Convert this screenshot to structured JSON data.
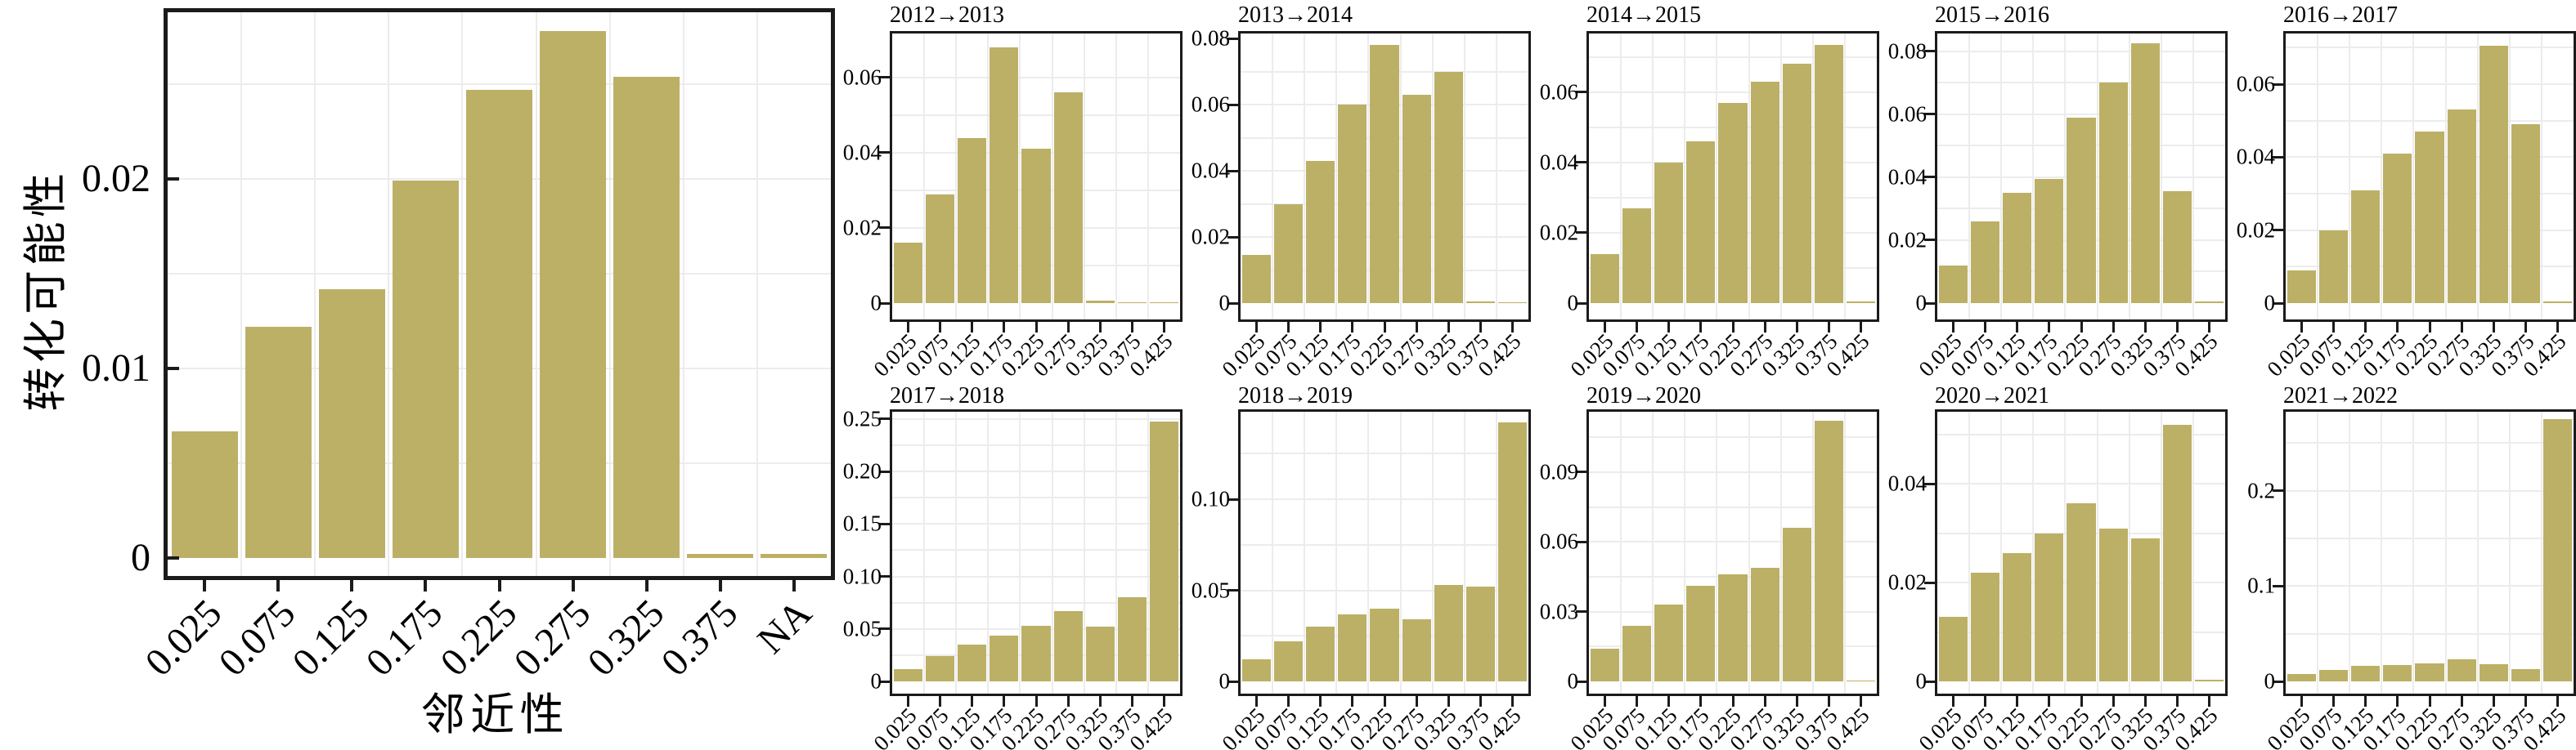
{
  "figure": {
    "background": "#ffffff",
    "bar_color": "#bcb066",
    "grid_color": "#ececee",
    "spine_color": "#1b1b1b",
    "text_color": "#000000"
  },
  "chart_data": [
    {
      "id": "main",
      "type": "bar",
      "title": "",
      "xlabel": "邻近性",
      "ylabel": "转化可能性",
      "categories": [
        "0.025",
        "0.075",
        "0.125",
        "0.175",
        "0.225",
        "0.275",
        "0.325",
        "0.375",
        "NA"
      ],
      "values": [
        0.0067,
        0.0122,
        0.0142,
        0.0199,
        0.0247,
        0.0278,
        0.0254,
        0.0002,
        0.0002
      ],
      "yticks": [
        0,
        0.01,
        0.02
      ],
      "ytick_labels": [
        "0",
        "0.01",
        "0.02"
      ],
      "ylim": [
        0,
        0.0288
      ],
      "grid": true,
      "legend_position": "none"
    },
    {
      "id": "t2012",
      "type": "bar",
      "title": "2012→2013",
      "categories": [
        "0.025",
        "0.075",
        "0.125",
        "0.175",
        "0.225",
        "0.275",
        "0.325",
        "0.375",
        "0.425"
      ],
      "values": [
        0.016,
        0.029,
        0.044,
        0.068,
        0.041,
        0.056,
        0.0006,
        0.0002,
        0.0002
      ],
      "yticks": [
        0,
        0.02,
        0.04,
        0.06
      ],
      "ytick_labels": [
        "0",
        "0.02",
        "0.04",
        "0.06"
      ],
      "ylim": [
        0,
        0.0717
      ],
      "grid": true,
      "legend_position": "none"
    },
    {
      "id": "t2013",
      "type": "bar",
      "title": "2013→2014",
      "categories": [
        "0.025",
        "0.075",
        "0.125",
        "0.175",
        "0.225",
        "0.275",
        "0.325",
        "0.375",
        "0.425"
      ],
      "values": [
        0.0145,
        0.03,
        0.043,
        0.06,
        0.078,
        0.063,
        0.07,
        0.0006,
        0.0002
      ],
      "yticks": [
        0,
        0.02,
        0.04,
        0.06,
        0.08
      ],
      "ytick_labels": [
        "0",
        "0.02",
        "0.04",
        "0.06",
        "0.08"
      ],
      "ylim": [
        0,
        0.0815
      ],
      "grid": true,
      "legend_position": "none"
    },
    {
      "id": "t2014",
      "type": "bar",
      "title": "2014→2015",
      "categories": [
        "0.025",
        "0.075",
        "0.125",
        "0.175",
        "0.225",
        "0.275",
        "0.325",
        "0.375",
        "0.425"
      ],
      "values": [
        0.014,
        0.027,
        0.04,
        0.046,
        0.057,
        0.063,
        0.068,
        0.0735,
        0.0004
      ],
      "yticks": [
        0,
        0.02,
        0.04,
        0.06
      ],
      "ytick_labels": [
        "0",
        "0.02",
        "0.04",
        "0.06"
      ],
      "ylim": [
        0,
        0.0767
      ],
      "grid": true,
      "legend_position": "none"
    },
    {
      "id": "t2015",
      "type": "bar",
      "title": "2015→2016",
      "categories": [
        "0.025",
        "0.075",
        "0.125",
        "0.175",
        "0.225",
        "0.275",
        "0.325",
        "0.375",
        "0.425"
      ],
      "values": [
        0.012,
        0.026,
        0.035,
        0.0395,
        0.059,
        0.07,
        0.0825,
        0.0355,
        0.0004
      ],
      "yticks": [
        0,
        0.02,
        0.04,
        0.06,
        0.08
      ],
      "ytick_labels": [
        "0",
        "0.02",
        "0.04",
        "0.06",
        "0.08"
      ],
      "ylim": [
        0,
        0.0857
      ],
      "grid": true,
      "legend_position": "none"
    },
    {
      "id": "t2016",
      "type": "bar",
      "title": "2016→2017",
      "categories": [
        "0.025",
        "0.075",
        "0.125",
        "0.175",
        "0.225",
        "0.275",
        "0.325",
        "0.375",
        "0.425"
      ],
      "values": [
        0.009,
        0.02,
        0.031,
        0.041,
        0.047,
        0.053,
        0.0705,
        0.049,
        0.0004
      ],
      "yticks": [
        0,
        0.02,
        0.04,
        0.06
      ],
      "ytick_labels": [
        "0",
        "0.02",
        "0.04",
        "0.06"
      ],
      "ylim": [
        0,
        0.0739
      ],
      "grid": true,
      "legend_position": "none"
    },
    {
      "id": "t2017",
      "type": "bar",
      "title": "2017→2018",
      "categories": [
        "0.025",
        "0.075",
        "0.125",
        "0.175",
        "0.225",
        "0.275",
        "0.325",
        "0.375",
        "0.425"
      ],
      "values": [
        0.012,
        0.024,
        0.035,
        0.044,
        0.053,
        0.067,
        0.052,
        0.08,
        0.248
      ],
      "yticks": [
        0,
        0.05,
        0.1,
        0.15,
        0.2,
        0.25
      ],
      "ytick_labels": [
        "0",
        "0.05",
        "0.10",
        "0.15",
        "0.20",
        "0.25"
      ],
      "ylim": [
        0,
        0.257
      ],
      "grid": true,
      "legend_position": "none"
    },
    {
      "id": "t2018",
      "type": "bar",
      "title": "2018→2019",
      "categories": [
        "0.025",
        "0.075",
        "0.125",
        "0.175",
        "0.225",
        "0.275",
        "0.325",
        "0.375",
        "0.425"
      ],
      "values": [
        0.012,
        0.022,
        0.03,
        0.037,
        0.04,
        0.034,
        0.053,
        0.052,
        0.142
      ],
      "yticks": [
        0,
        0.05,
        0.1
      ],
      "ytick_labels": [
        "0",
        "0.05",
        "0.10"
      ],
      "ylim": [
        0,
        0.148
      ],
      "grid": true,
      "legend_position": "none"
    },
    {
      "id": "t2019",
      "type": "bar",
      "title": "2019→2020",
      "categories": [
        "0.025",
        "0.075",
        "0.125",
        "0.175",
        "0.225",
        "0.275",
        "0.325",
        "0.375",
        "0.425"
      ],
      "values": [
        0.014,
        0.024,
        0.033,
        0.041,
        0.046,
        0.049,
        0.066,
        0.112,
        0.0004
      ],
      "yticks": [
        0,
        0.03,
        0.06,
        0.09
      ],
      "ytick_labels": [
        "0",
        "0.03",
        "0.06",
        "0.09"
      ],
      "ylim": [
        0,
        0.116
      ],
      "grid": true,
      "legend_position": "none"
    },
    {
      "id": "t2020",
      "type": "bar",
      "title": "2020→2021",
      "categories": [
        "0.025",
        "0.075",
        "0.125",
        "0.175",
        "0.225",
        "0.275",
        "0.325",
        "0.375",
        "0.425"
      ],
      "values": [
        0.013,
        0.022,
        0.026,
        0.03,
        0.036,
        0.031,
        0.029,
        0.052,
        0.0003
      ],
      "yticks": [
        0,
        0.02,
        0.04
      ],
      "ytick_labels": [
        "0",
        "0.02",
        "0.04"
      ],
      "ylim": [
        0,
        0.0546
      ],
      "grid": true,
      "legend_position": "none"
    },
    {
      "id": "t2021",
      "type": "bar",
      "title": "2021→2022",
      "categories": [
        "0.025",
        "0.075",
        "0.125",
        "0.175",
        "0.225",
        "0.275",
        "0.325",
        "0.375",
        "0.425"
      ],
      "values": [
        0.008,
        0.012,
        0.016,
        0.017,
        0.019,
        0.023,
        0.018,
        0.013,
        0.275
      ],
      "yticks": [
        0,
        0.1,
        0.2
      ],
      "ytick_labels": [
        "0",
        "0.1",
        "0.2"
      ],
      "ylim": [
        0,
        0.283
      ],
      "grid": true,
      "legend_position": "none"
    }
  ]
}
